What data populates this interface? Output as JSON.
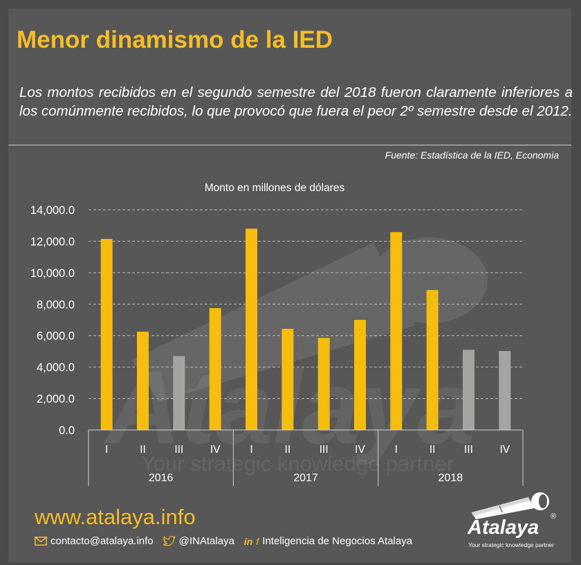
{
  "header": {
    "title": "Menor dinamismo de la IED",
    "subtitle": "Los montos recibidos en el segundo semestre del 2018 fueron claramente inferiores a los comúnmente recibidos, lo que provocó que fuera el peor 2º semestre desde el 2012.",
    "source": "Fuente: Estadística de la IED, Economia"
  },
  "chart_data": {
    "type": "bar",
    "title": "Monto en millones de dólares",
    "xlabel": "",
    "ylabel": "",
    "ylim": [
      0,
      14000
    ],
    "yticks": [
      0,
      2000,
      4000,
      6000,
      8000,
      10000,
      12000,
      14000
    ],
    "ytick_labels": [
      "0.0",
      "2,000.0",
      "4,000.0",
      "6,000.0",
      "8,000.0",
      "10,000.0",
      "12,000.0",
      "14,000.0"
    ],
    "grid": true,
    "groups": [
      {
        "label": "2016",
        "categories": [
          "I",
          "II",
          "III",
          "IV"
        ],
        "values": [
          12150,
          6250,
          4700,
          7750
        ]
      },
      {
        "label": "2017",
        "categories": [
          "I",
          "II",
          "III",
          "IV"
        ],
        "values": [
          12800,
          6430,
          5850,
          7000
        ]
      },
      {
        "label": "2018",
        "categories": [
          "I",
          "II",
          "III",
          "IV"
        ],
        "values": [
          12580,
          8900,
          5100,
          5020
        ]
      }
    ],
    "colors": {
      "highlight": "#f6bd0f",
      "muted": "#a6a3a3"
    },
    "muted_bars": [
      "2016-III",
      "2018-III",
      "2018-IV"
    ]
  },
  "watermark": {
    "name": "Atalaya",
    "tagline": "Your strategic knowledge partner"
  },
  "footer": {
    "website": "www.atalaya.info",
    "email": "contacto@atalaya.info",
    "twitter": "@INAtalaya",
    "linkedin_label": "in",
    "facebook_label": "f",
    "company": "Inteligencia de Negocios Atalaya"
  },
  "logo": {
    "name": "Atalaya",
    "registered": "®",
    "tagline": "Your strategic knowledge partner"
  },
  "colors": {
    "background": "#575757",
    "accent": "#f6bd27",
    "text": "#ffffff"
  },
  "icons": [
    "envelope-icon",
    "twitter-bird-icon",
    "linkedin-icon",
    "facebook-icon",
    "telescope-icon"
  ]
}
